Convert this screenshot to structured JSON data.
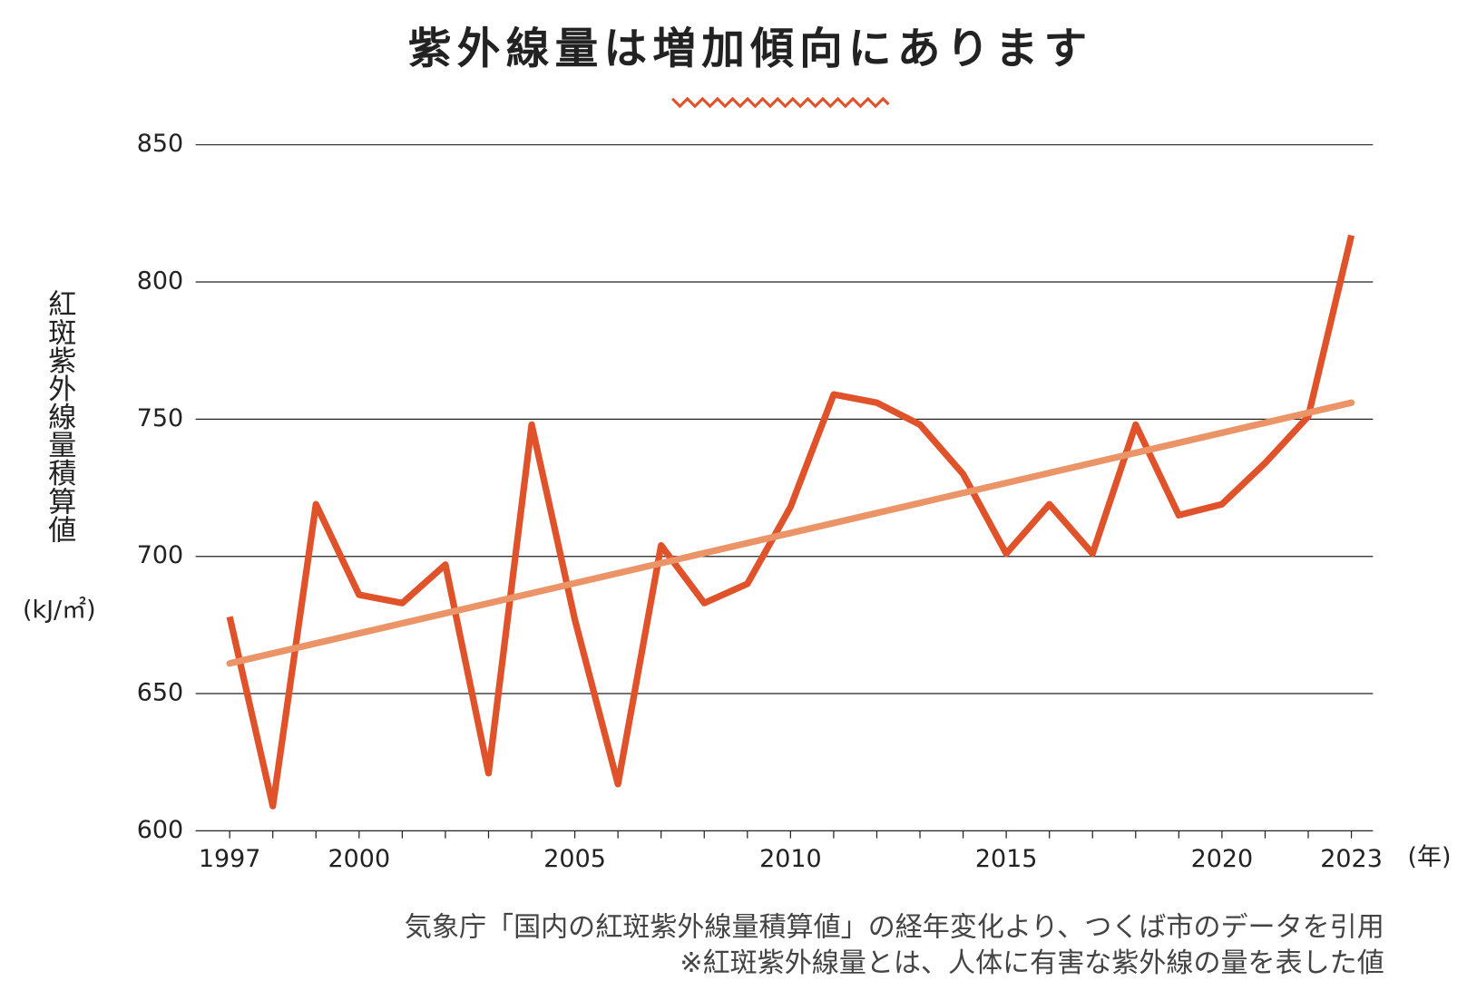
{
  "chart_data": {
    "type": "line",
    "title": "紫外線量は増加傾向にあります",
    "ylabel": "紅斑紫外線量積算値",
    "yunit": "(kJ/㎡)",
    "xunit": "(年)",
    "notes": [
      "気象庁「国内の紅斑紫外線量積算値」の経年変化より、つくば市のデータを引用",
      "※紅斑紫外線量とは、人体に有害な紫外線の量を表した値"
    ],
    "x": [
      1997,
      1998,
      1999,
      2000,
      2001,
      2002,
      2003,
      2004,
      2005,
      2006,
      2007,
      2008,
      2009,
      2010,
      2011,
      2012,
      2013,
      2014,
      2015,
      2016,
      2017,
      2018,
      2019,
      2020,
      2021,
      2022,
      2023
    ],
    "series": [
      {
        "color": "#e0522a",
        "values": [
          678,
          609,
          719,
          686,
          683,
          697,
          621,
          748,
          677,
          617,
          704,
          683,
          690,
          718,
          759,
          756,
          748,
          730,
          701,
          719,
          701,
          748,
          715,
          719,
          734,
          751,
          817
        ]
      }
    ],
    "trendline": {
      "color": "#eb9468",
      "x": [
        1997,
        2023
      ],
      "values": [
        661,
        756
      ]
    },
    "xlim": [
      1995.6,
      2023.5
    ],
    "xticks": [
      1997,
      2000,
      2005,
      2010,
      2015,
      2020,
      2023
    ],
    "ylim": [
      600,
      850
    ],
    "yticks": [
      600,
      650,
      700,
      750,
      800,
      850
    ],
    "grid": true
  }
}
